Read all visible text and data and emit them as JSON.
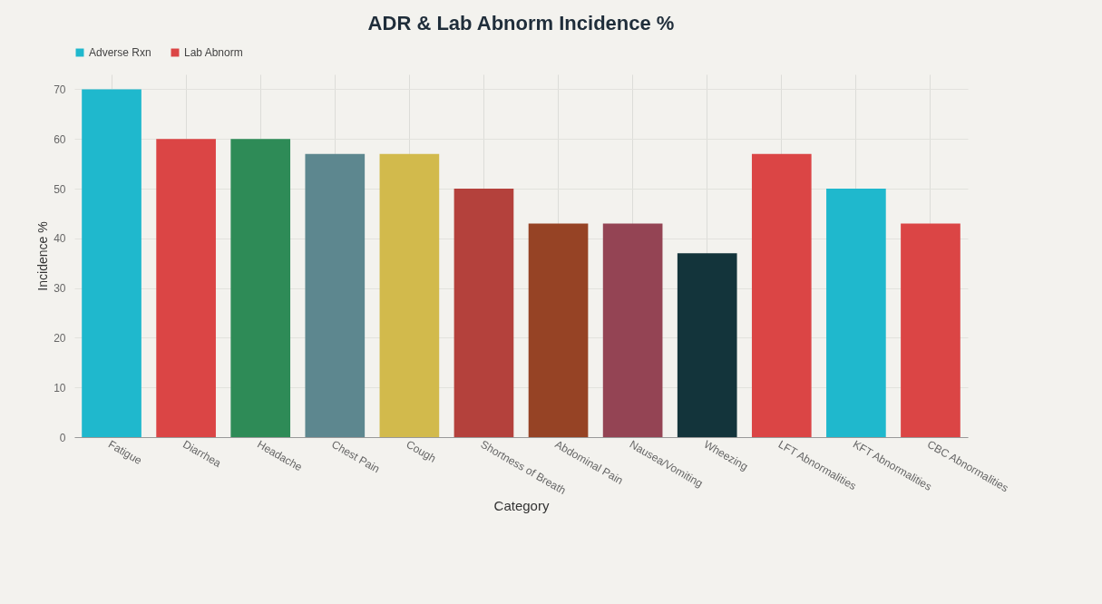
{
  "chart_data": {
    "type": "bar",
    "title": "ADR & Lab Abnorm Incidence %",
    "xlabel": "Category",
    "ylabel": "Incidence %",
    "categories": [
      "Fatigue",
      "Diarrhea",
      "Headache",
      "Chest Pain",
      "Cough",
      "Shortness of Breath",
      "Abdominal Pain",
      "Nausea/Vomiting",
      "Wheezing",
      "LFT Abnormalities",
      "KFT Abnormalities",
      "CBC Abnormalities"
    ],
    "series": [
      {
        "name": "Adverse Rxn",
        "color": "#1fb8cd",
        "values": [
          70,
          60,
          60,
          57,
          57,
          50,
          43,
          43,
          37,
          null,
          null,
          null
        ],
        "colors": [
          "#1fb8cd",
          "#db4545",
          "#2e8b57",
          "#5d878f",
          "#d2ba4c",
          "#b4413c",
          "#964325",
          "#944454",
          "#13343b",
          null,
          null,
          null
        ]
      },
      {
        "name": "Lab Abnorm",
        "color": "#db4545",
        "values": [
          null,
          null,
          null,
          null,
          null,
          null,
          null,
          null,
          null,
          57,
          50,
          43
        ],
        "colors": [
          null,
          null,
          null,
          null,
          null,
          null,
          null,
          null,
          null,
          "#db4545",
          "#1fb8cd",
          "#db4545"
        ]
      }
    ],
    "ylim": [
      0,
      73
    ],
    "yticks": [
      0,
      10,
      20,
      30,
      40,
      50,
      60,
      70
    ],
    "grid": true,
    "legend": "top"
  }
}
